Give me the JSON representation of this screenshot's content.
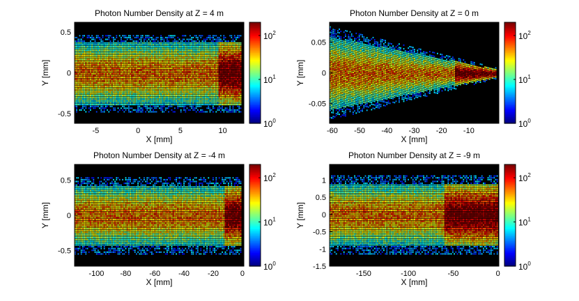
{
  "chart_data": [
    {
      "type": "heatmap",
      "title": "Photon Number Density at Z = 4 m",
      "xlabel": "X [mm]",
      "ylabel": "Y [mm]",
      "xlim": [
        -7.5,
        12.5
      ],
      "ylim": [
        -0.62,
        0.62
      ],
      "xticks": [
        -5,
        0,
        5,
        10
      ],
      "xtick_labels": [
        "-5",
        "0",
        "5",
        "10"
      ],
      "yticks": [
        -0.5,
        0,
        0.5
      ],
      "ytick_labels": [
        "-0.5",
        "0",
        "0.5"
      ],
      "beam": {
        "x_start": -7.5,
        "x_end": 12.2,
        "half_width_start": 0.45,
        "half_width_end": 0.45,
        "bright_from": 9.5,
        "bright_to": 12.2
      },
      "colorbar": {
        "scale": "log",
        "range": [
          1,
          200
        ],
        "ticks": [
          {
            "value": 1,
            "base": "10",
            "exp": "0"
          },
          {
            "value": 10,
            "base": "10",
            "exp": "1"
          },
          {
            "value": 100,
            "base": "10",
            "exp": "2"
          }
        ]
      }
    },
    {
      "type": "heatmap",
      "title": "Photon Number Density at Z = 0 m",
      "xlabel": "X [mm]",
      "ylabel": "Y [mm]",
      "xlim": [
        -61,
        1
      ],
      "ylim": [
        -0.082,
        0.082
      ],
      "xticks": [
        -60,
        -50,
        -40,
        -30,
        -20,
        -10
      ],
      "xtick_labels": [
        "-60",
        "-50",
        "-40",
        "-30",
        "-20",
        "-10"
      ],
      "yticks": [
        -0.05,
        0,
        0.05
      ],
      "ytick_labels": [
        "-0.05",
        "0",
        "0.05"
      ],
      "beam": {
        "x_start": -61,
        "x_end": 0,
        "half_width_start": 0.07,
        "half_width_end": 0.008,
        "bright_from": -15,
        "bright_to": 0
      },
      "colorbar": {
        "scale": "log",
        "range": [
          1,
          200
        ],
        "ticks": [
          {
            "value": 1,
            "base": "10",
            "exp": "0"
          },
          {
            "value": 10,
            "base": "10",
            "exp": "1"
          },
          {
            "value": 100,
            "base": "10",
            "exp": "2"
          }
        ]
      }
    },
    {
      "type": "heatmap",
      "title": "Photon Number Density at Z = -4 m",
      "xlabel": "X [mm]",
      "ylabel": "Y [mm]",
      "xlim": [
        -115,
        1
      ],
      "ylim": [
        -0.72,
        0.72
      ],
      "xticks": [
        -100,
        -80,
        -60,
        -40,
        -20,
        0
      ],
      "xtick_labels": [
        "-100",
        "-80",
        "-60",
        "-40",
        "-20",
        "0"
      ],
      "yticks": [
        -0.5,
        0,
        0.5
      ],
      "ytick_labels": [
        "-0.5",
        "0",
        "0.5"
      ],
      "beam": {
        "x_start": -115,
        "x_end": -1,
        "half_width_start": 0.5,
        "half_width_end": 0.5,
        "bright_from": -13,
        "bright_to": -1
      },
      "colorbar": {
        "scale": "log",
        "range": [
          1,
          200
        ],
        "ticks": [
          {
            "value": 1,
            "base": "10",
            "exp": "0"
          },
          {
            "value": 10,
            "base": "10",
            "exp": "1"
          },
          {
            "value": 100,
            "base": "10",
            "exp": "2"
          }
        ]
      }
    },
    {
      "type": "heatmap",
      "title": "Photon Number Density at Z = -9 m",
      "xlabel": "X [mm]",
      "ylabel": "Y [mm]",
      "xlim": [
        -188,
        1
      ],
      "ylim": [
        -1.5,
        1.45
      ],
      "xticks": [
        -150,
        -100,
        -50,
        0
      ],
      "xtick_labels": [
        "-150",
        "-100",
        "-50",
        "0"
      ],
      "yticks": [
        -1.5,
        -1,
        -0.5,
        0,
        0.5,
        1
      ],
      "ytick_labels": [
        "-1.5",
        "-1",
        "-0.5",
        "0",
        "0.5",
        "1"
      ],
      "beam": {
        "x_start": -188,
        "x_end": -1,
        "half_width_start": 1.05,
        "half_width_end": 1.05,
        "bright_from": -60,
        "bright_to": -1
      },
      "colorbar": {
        "scale": "log",
        "range": [
          1,
          200
        ],
        "ticks": [
          {
            "value": 1,
            "base": "10",
            "exp": "0"
          },
          {
            "value": 10,
            "base": "10",
            "exp": "1"
          },
          {
            "value": 100,
            "base": "10",
            "exp": "2"
          }
        ]
      }
    }
  ]
}
